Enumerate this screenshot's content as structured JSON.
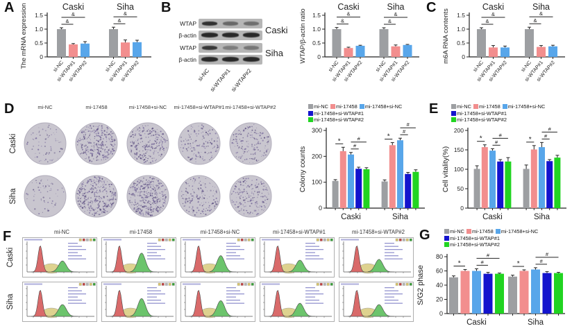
{
  "panel_labels": {
    "a": "A",
    "b": "B",
    "c": "C",
    "d": "D",
    "e": "E",
    "f": "F",
    "g": "G"
  },
  "colors": {
    "gray": "#9d9fa2",
    "salmon": "#f28e8e",
    "lightblue": "#58a6ea",
    "darkblue": "#1414cd",
    "green": "#21d421",
    "axis": "#222222",
    "plate_bg": "#c9c6cf",
    "plate_edge": "#b2aebc",
    "plate_dot": "#5d5080",
    "plate_dot2": "#7a6c9e",
    "blot_bg": "#b6b6b6",
    "flow_red": "#d96a6a",
    "flow_green": "#6cc46c",
    "flow_yellow": "#ddd08a",
    "flow_blue": "#6666bb"
  },
  "western": {
    "lanes": [
      "si-NC",
      "si-WTAP#1",
      "si-WTAP#2"
    ],
    "groups": [
      {
        "cell": "Caski",
        "rows": [
          {
            "label": "WTAP",
            "intensities": [
              0.95,
              0.55,
              0.5
            ]
          },
          {
            "label": "β-actin",
            "intensities": [
              1,
              1,
              1
            ]
          }
        ]
      },
      {
        "cell": "Siha",
        "rows": [
          {
            "label": "WTAP",
            "intensities": [
              0.9,
              0.4,
              0.45
            ]
          },
          {
            "label": "β-actin",
            "intensities": [
              1,
              1,
              1
            ]
          }
        ]
      }
    ]
  },
  "colony": {
    "col_headers": [
      "mi-NC",
      "mi-17458",
      "mi-17458+si-NC",
      "mi-17458+si-WTAP#1",
      "mi-17458+si-WTAP#2"
    ],
    "row_headers": [
      "Caski",
      "Siha"
    ],
    "densities": [
      [
        70,
        300,
        240,
        150,
        165
      ],
      [
        60,
        330,
        390,
        160,
        190
      ]
    ]
  },
  "flow": {
    "col_headers": [
      "mi-NC",
      "mi-17458",
      "mi-17458+si-NC",
      "mi-17458+si-WTAP#1",
      "mi-17458+si-WTAP#2"
    ],
    "row_headers": [
      "Caski",
      "Siha"
    ],
    "g2_peak_heights": [
      [
        0.42,
        0.72,
        0.62,
        0.45,
        0.48
      ],
      [
        0.45,
        0.68,
        0.6,
        0.5,
        0.45
      ]
    ]
  },
  "chart_data": [
    {
      "id": "A",
      "type": "bar",
      "ylabel": "The mRNA expression",
      "ylim": [
        0,
        1.5
      ],
      "ytick_labels": [
        "0",
        "0.5",
        "1.0",
        "1.5"
      ],
      "ytick_values": [
        0,
        0.5,
        1.0,
        1.5
      ],
      "groups": [
        "Caski",
        "Siha"
      ],
      "categories": [
        "si-NC",
        "si-WTAP#1",
        "si-WTAP#2"
      ],
      "series_colors": [
        "gray",
        "salmon",
        "lightblue"
      ],
      "values": [
        [
          1.0,
          0.45,
          0.48
        ],
        [
          1.0,
          0.52,
          0.53
        ]
      ],
      "errors": [
        [
          0.05,
          0.03,
          0.07
        ],
        [
          0.07,
          0.09,
          0.07
        ]
      ],
      "sig": [
        {
          "group": 0,
          "i1": 0,
          "i2": 1,
          "label": "&",
          "level": 0
        },
        {
          "group": 0,
          "i1": 0,
          "i2": 2,
          "label": "&",
          "level": 1
        },
        {
          "group": 1,
          "i1": 0,
          "i2": 1,
          "label": "&",
          "level": 0
        },
        {
          "group": 1,
          "i1": 0,
          "i2": 2,
          "label": "&",
          "level": 1
        }
      ],
      "group_label_pos": "top"
    },
    {
      "id": "B",
      "type": "bar",
      "ylabel": "WTAP/β-actin ratio",
      "ylim": [
        0,
        1.5
      ],
      "ytick_labels": [
        "0",
        "0.5",
        "1.0",
        "1.5"
      ],
      "ytick_values": [
        0,
        0.5,
        1.0,
        1.5
      ],
      "groups": [
        "Caski",
        "Siha"
      ],
      "categories": [
        "si-NC",
        "si-WTAP#1",
        "si-WTAP#2"
      ],
      "series_colors": [
        "gray",
        "salmon",
        "lightblue"
      ],
      "values": [
        [
          1.0,
          0.32,
          0.4
        ],
        [
          1.0,
          0.38,
          0.43
        ]
      ],
      "errors": [
        [
          0.06,
          0.03,
          0.02
        ],
        [
          0.05,
          0.05,
          0.02
        ]
      ],
      "sig": [
        {
          "group": 0,
          "i1": 0,
          "i2": 1,
          "label": "&",
          "level": 0
        },
        {
          "group": 0,
          "i1": 0,
          "i2": 2,
          "label": "&",
          "level": 1
        },
        {
          "group": 1,
          "i1": 0,
          "i2": 1,
          "label": "&",
          "level": 0
        },
        {
          "group": 1,
          "i1": 0,
          "i2": 2,
          "label": "&",
          "level": 1
        }
      ],
      "group_label_pos": "top"
    },
    {
      "id": "C",
      "type": "bar",
      "ylabel": "m6A RNA contents",
      "ylim": [
        0,
        1.5
      ],
      "ytick_labels": [
        "0",
        "0.5",
        "1.0",
        "1.5"
      ],
      "ytick_values": [
        0,
        0.5,
        1.0,
        1.5
      ],
      "groups": [
        "Caski",
        "Siha"
      ],
      "categories": [
        "si-NC",
        "si-WTAP#1",
        "si-WTAP#2"
      ],
      "series_colors": [
        "gray",
        "salmon",
        "lightblue"
      ],
      "values": [
        [
          1.0,
          0.34,
          0.34
        ],
        [
          1.0,
          0.36,
          0.38
        ]
      ],
      "errors": [
        [
          0.05,
          0.07,
          0.05
        ],
        [
          0.07,
          0.05,
          0.04
        ]
      ],
      "sig": [
        {
          "group": 0,
          "i1": 0,
          "i2": 1,
          "label": "&",
          "level": 0
        },
        {
          "group": 0,
          "i1": 0,
          "i2": 2,
          "label": "&",
          "level": 1
        },
        {
          "group": 1,
          "i1": 0,
          "i2": 1,
          "label": "&",
          "level": 0
        },
        {
          "group": 1,
          "i1": 0,
          "i2": 2,
          "label": "&",
          "level": 1
        }
      ],
      "group_label_pos": "top"
    },
    {
      "id": "D",
      "type": "bar",
      "ylabel": "Colony counts",
      "ylim": [
        0,
        300
      ],
      "ytick_labels": [
        "0",
        "100",
        "200",
        "300"
      ],
      "ytick_values": [
        0,
        100,
        200,
        300
      ],
      "groups": [
        "Caski",
        "Siha"
      ],
      "categories": [
        "mi-NC",
        "mi-17458",
        "mi-17458+si-NC",
        "mi-17458+si-WTAP#1",
        "mi-17458+si-WTAP#2"
      ],
      "series_colors": [
        "gray",
        "salmon",
        "lightblue",
        "darkblue",
        "green"
      ],
      "values": [
        [
          105,
          220,
          207,
          152,
          150
        ],
        [
          103,
          243,
          262,
          132,
          140
        ]
      ],
      "errors": [
        [
          5,
          15,
          8,
          6,
          6
        ],
        [
          6,
          10,
          8,
          6,
          8
        ]
      ],
      "sig": [
        {
          "group": 0,
          "i1": 0,
          "i2": 1,
          "label": "*",
          "level": 0
        },
        {
          "group": 0,
          "i1": 2,
          "i2": 3,
          "label": "#",
          "level": 0
        },
        {
          "group": 0,
          "i1": 2,
          "i2": 4,
          "label": "#",
          "level": 1
        },
        {
          "group": 1,
          "i1": 0,
          "i2": 1,
          "label": "*",
          "level": 0
        },
        {
          "group": 1,
          "i1": 2,
          "i2": 3,
          "label": "#",
          "level": 0
        },
        {
          "group": 1,
          "i1": 2,
          "i2": 4,
          "label": "#",
          "level": 1
        }
      ],
      "group_label_pos": "bottom",
      "legend_rows": [
        [
          0,
          1,
          2
        ],
        [
          3
        ],
        [
          4
        ]
      ]
    },
    {
      "id": "E",
      "type": "bar",
      "ylabel": "Cell vitality(%)",
      "ylim": [
        0,
        200
      ],
      "ytick_labels": [
        "0",
        "50",
        "100",
        "150",
        "200"
      ],
      "ytick_values": [
        0,
        50,
        100,
        150,
        200
      ],
      "groups": [
        "Caski",
        "Siha"
      ],
      "categories": [
        "mi-NC",
        "mi-17458",
        "mi-17458+si-NC",
        "mi-17458+si-WTAP#1",
        "mi-17458+si-WTAP#2"
      ],
      "series_colors": [
        "gray",
        "salmon",
        "lightblue",
        "darkblue",
        "green"
      ],
      "values": [
        [
          101,
          157,
          148,
          120,
          120
        ],
        [
          101,
          151,
          157,
          121,
          130
        ]
      ],
      "errors": [
        [
          8,
          6,
          5,
          5,
          10
        ],
        [
          10,
          10,
          12,
          4,
          6
        ]
      ],
      "sig": [
        {
          "group": 0,
          "i1": 0,
          "i2": 1,
          "label": "*",
          "level": 0
        },
        {
          "group": 0,
          "i1": 2,
          "i2": 3,
          "label": "#",
          "level": 0
        },
        {
          "group": 0,
          "i1": 2,
          "i2": 4,
          "label": "#",
          "level": 1
        },
        {
          "group": 1,
          "i1": 0,
          "i2": 1,
          "label": "*",
          "level": 0
        },
        {
          "group": 1,
          "i1": 2,
          "i2": 3,
          "label": "#",
          "level": 0
        },
        {
          "group": 1,
          "i1": 2,
          "i2": 4,
          "label": "#",
          "level": 1
        }
      ],
      "group_label_pos": "bottom",
      "legend_rows": [
        [
          0,
          1,
          2
        ],
        [
          3
        ],
        [
          4
        ]
      ]
    },
    {
      "id": "G",
      "type": "bar",
      "ylabel": "S/G2 phase",
      "ylim": [
        0,
        80
      ],
      "ytick_labels": [
        "0",
        "20",
        "40",
        "60",
        "80"
      ],
      "ytick_values": [
        0,
        20,
        40,
        60,
        80
      ],
      "groups": [
        "Caski",
        "Siha"
      ],
      "categories": [
        "mi-NC",
        "mi-17458",
        "mi-17458+si-NC",
        "mi-17458+si-WTAP#1",
        "mi-17458+si-WTAP#2"
      ],
      "series_colors": [
        "gray",
        "salmon",
        "lightblue",
        "darkblue",
        "green"
      ],
      "values": [
        [
          51,
          60,
          60,
          56,
          56
        ],
        [
          52,
          60,
          62,
          57,
          57
        ]
      ],
      "errors": [
        [
          2,
          2,
          3,
          2,
          1
        ],
        [
          2,
          1.5,
          2.5,
          2,
          1
        ]
      ],
      "sig": [
        {
          "group": 0,
          "i1": 0,
          "i2": 1,
          "label": "*",
          "level": 0
        },
        {
          "group": 0,
          "i1": 2,
          "i2": 3,
          "label": "#",
          "level": 0
        },
        {
          "group": 0,
          "i1": 2,
          "i2": 4,
          "label": "#",
          "level": 1
        },
        {
          "group": 1,
          "i1": 0,
          "i2": 1,
          "label": "*",
          "level": 0
        },
        {
          "group": 1,
          "i1": 2,
          "i2": 3,
          "label": "#",
          "level": 0
        },
        {
          "group": 1,
          "i1": 2,
          "i2": 4,
          "label": "#",
          "level": 1
        }
      ],
      "group_label_pos": "bottom",
      "legend_rows": [
        [
          0,
          1,
          2
        ],
        [
          3
        ],
        [
          4
        ]
      ]
    }
  ]
}
